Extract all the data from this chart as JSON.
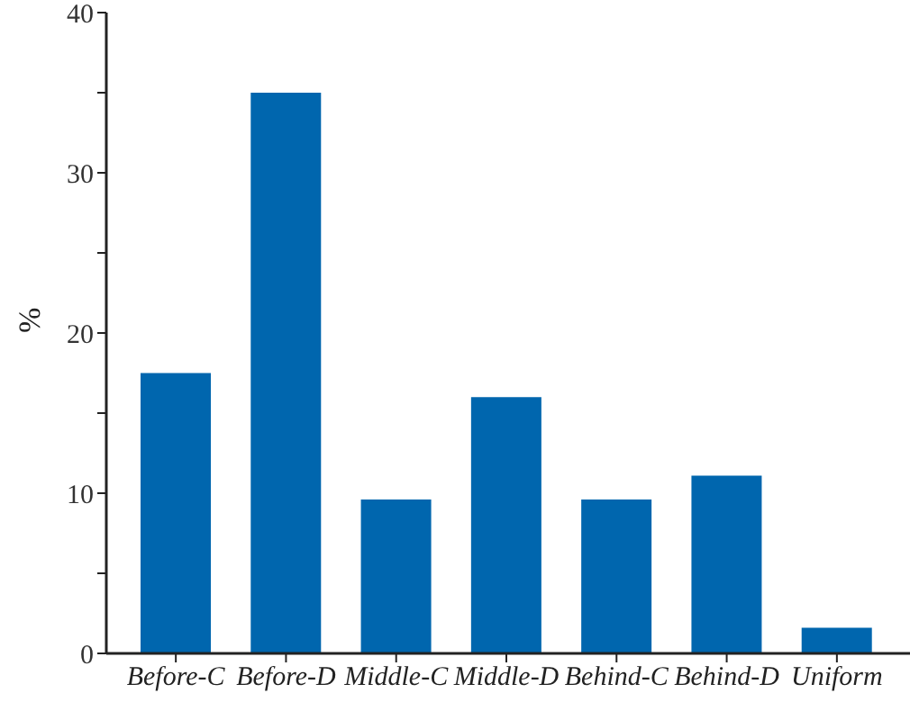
{
  "chart_data": {
    "type": "bar",
    "ylabel": "%",
    "categories": [
      "Before-C",
      "Before-D",
      "Middle-C",
      "Middle-D",
      "Behind-C",
      "Behind-D",
      "Uniform"
    ],
    "values": [
      17.5,
      35,
      9.6,
      16,
      9.6,
      11.1,
      1.6
    ],
    "color": "#0066ae",
    "ylim": [
      0,
      40
    ],
    "yticks": [
      0,
      {
        "value": 5,
        "label": null
      },
      10,
      {
        "value": 15,
        "label": null
      },
      20,
      {
        "value": 25,
        "label": null
      },
      30,
      {
        "value": 35,
        "label": null
      },
      40
    ],
    "grid": false
  }
}
